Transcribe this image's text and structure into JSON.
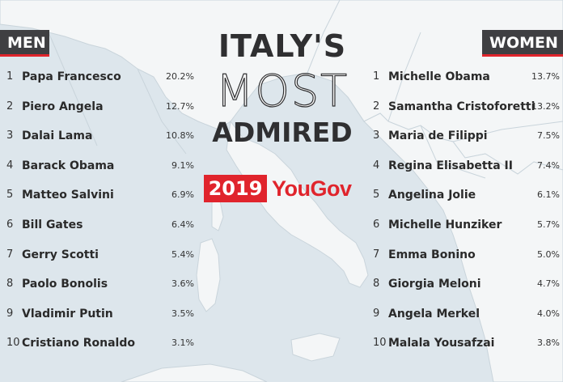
{
  "header": {
    "men_label": "MEN",
    "women_label": "WOMEN"
  },
  "title": {
    "line1": "ITALY'S",
    "line2": "MOST",
    "line3": "ADMIRED"
  },
  "badge": {
    "year": "2019",
    "brand": "YouGov"
  },
  "colors": {
    "accent": "#e0242c",
    "tag_bg": "#3f3f42",
    "sea": "#dde6ec",
    "land": "#f4f6f7"
  },
  "men": [
    {
      "rank": "1",
      "name": "Papa Francesco",
      "pct": "20.2%"
    },
    {
      "rank": "2",
      "name": "Piero Angela",
      "pct": "12.7%"
    },
    {
      "rank": "3",
      "name": "Dalai Lama",
      "pct": "10.8%"
    },
    {
      "rank": "4",
      "name": "Barack Obama",
      "pct": "9.1%"
    },
    {
      "rank": "5",
      "name": "Matteo Salvini",
      "pct": "6.9%"
    },
    {
      "rank": "6",
      "name": "Bill Gates",
      "pct": "6.4%"
    },
    {
      "rank": "7",
      "name": "Gerry Scotti",
      "pct": "5.4%"
    },
    {
      "rank": "8",
      "name": "Paolo Bonolis",
      "pct": "3.6%"
    },
    {
      "rank": "9",
      "name": "Vladimir Putin",
      "pct": "3.5%"
    },
    {
      "rank": "10",
      "name": "Cristiano Ronaldo",
      "pct": "3.1%"
    }
  ],
  "women": [
    {
      "rank": "1",
      "name": "Michelle Obama",
      "pct": "13.7%"
    },
    {
      "rank": "2",
      "name": "Samantha Cristoforetti",
      "pct": "13.2%"
    },
    {
      "rank": "3",
      "name": "Maria de Filippi",
      "pct": "7.5%"
    },
    {
      "rank": "4",
      "name": "Regina Elisabetta II",
      "pct": "7.4%"
    },
    {
      "rank": "5",
      "name": "Angelina Jolie",
      "pct": "6.1%"
    },
    {
      "rank": "6",
      "name": "Michelle Hunziker",
      "pct": "5.7%"
    },
    {
      "rank": "7",
      "name": "Emma Bonino",
      "pct": "5.0%"
    },
    {
      "rank": "8",
      "name": "Giorgia Meloni",
      "pct": "4.7%"
    },
    {
      "rank": "9",
      "name": "Angela Merkel",
      "pct": "4.0%"
    },
    {
      "rank": "10",
      "name": "Malala Yousafzai",
      "pct": "3.8%"
    }
  ]
}
